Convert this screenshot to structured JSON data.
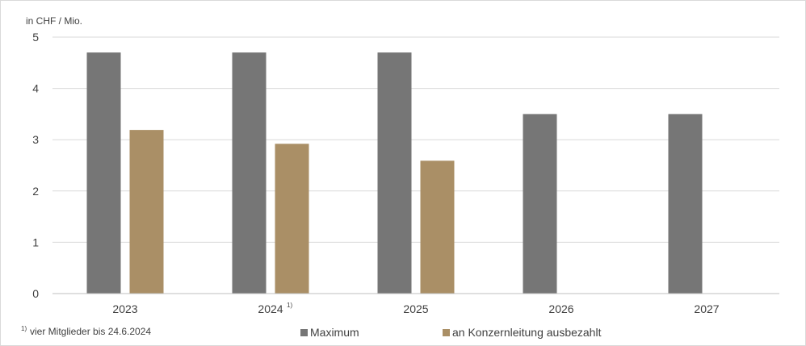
{
  "chart_data": {
    "type": "bar",
    "unit_label": "in CHF / Mio.",
    "categories": [
      "2023",
      "2024",
      "2025",
      "2026",
      "2027"
    ],
    "category_notes": [
      "",
      "1)",
      "",
      "",
      ""
    ],
    "ylim": [
      0,
      5
    ],
    "yticks": [
      "0",
      "1",
      "2",
      "3",
      "4",
      "5"
    ],
    "series": [
      {
        "name": "Maximum",
        "color": "#767676",
        "values": [
          4.7,
          4.7,
          4.7,
          3.5,
          3.5
        ]
      },
      {
        "name": "an Konzernleitung ausbezahlt",
        "color": "#aa8f66",
        "values": [
          3.19,
          2.92,
          2.59,
          null,
          null
        ]
      }
    ],
    "grid": true,
    "legend": "bottom",
    "footnote": {
      "mark": "1)",
      "text": "vier Mitglieder bis 24.6.2024"
    }
  }
}
